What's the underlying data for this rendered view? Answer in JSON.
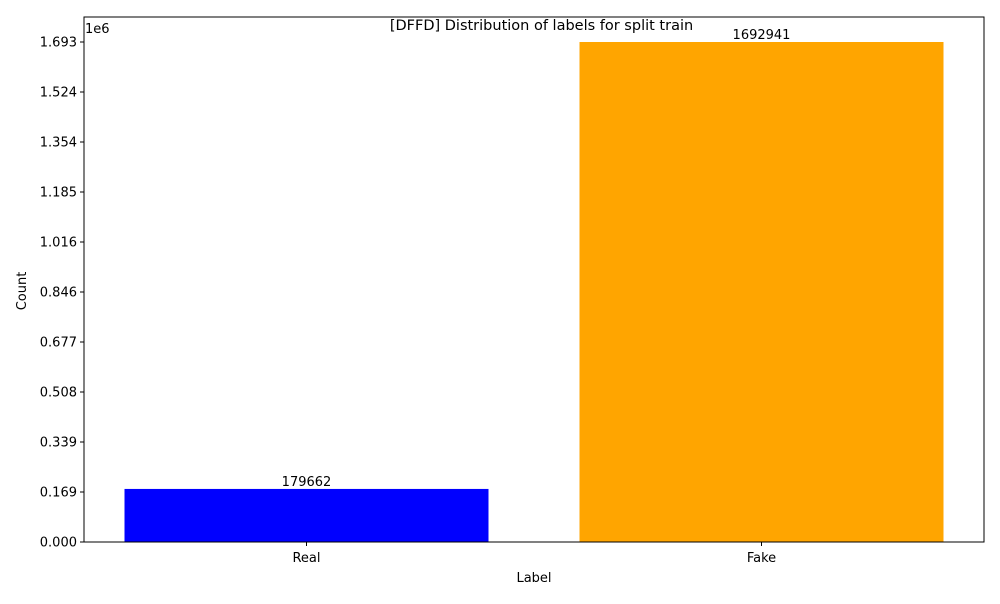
{
  "chart_data": {
    "type": "bar",
    "title": "[DFFD] Distribution of labels for split train",
    "xlabel": "Label",
    "ylabel": "Count",
    "y_offset_text": "1e6",
    "categories": [
      "Real",
      "Fake"
    ],
    "values": [
      179662,
      1692941
    ],
    "data_labels": [
      "179662",
      "1692941"
    ],
    "colors": [
      "#0000ff",
      "#ffa500"
    ],
    "ylim": [
      0,
      1777588
    ],
    "yticks": [
      0,
      169294,
      338588,
      507882,
      677176,
      846471,
      1015765,
      1185059,
      1354353,
      1523647,
      1692941
    ],
    "ytick_labels": [
      "0.000",
      "0.169",
      "0.339",
      "0.508",
      "0.677",
      "0.846",
      "1.016",
      "1.185",
      "1.354",
      "1.524",
      "1.693"
    ],
    "grid": false,
    "legend": "none"
  }
}
